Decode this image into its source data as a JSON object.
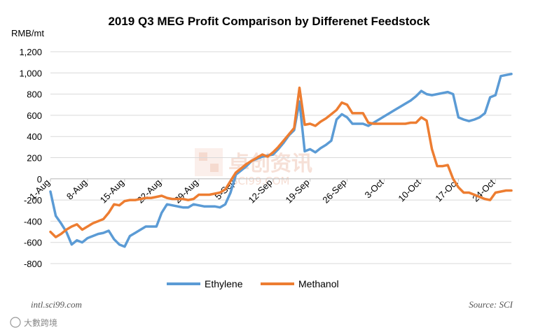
{
  "chart_data": {
    "type": "line",
    "title": "2019 Q3 MEG Profit Comparison by Differenet Feedstock",
    "ylabel": "RMB/mt",
    "ylim": [
      -800,
      1200
    ],
    "yticks": [
      -800,
      -600,
      -400,
      -200,
      0,
      200,
      400,
      600,
      800,
      1000,
      1200
    ],
    "ytick_labels": [
      "-800",
      "-600",
      "-400",
      "-200",
      "0",
      "200",
      "400",
      "600",
      "800",
      "1,000",
      "1,200"
    ],
    "xlim": [
      0,
      87
    ],
    "xticks": [
      {
        "day": 0,
        "label": "1-Aug"
      },
      {
        "day": 7,
        "label": "8-Aug"
      },
      {
        "day": 14,
        "label": "15-Aug"
      },
      {
        "day": 21,
        "label": "22-Aug"
      },
      {
        "day": 28,
        "label": "29-Aug"
      },
      {
        "day": 35,
        "label": "5-Sep"
      },
      {
        "day": 42,
        "label": "12-Sep"
      },
      {
        "day": 49,
        "label": "19-Sep"
      },
      {
        "day": 56,
        "label": "26-Sep"
      },
      {
        "day": 63,
        "label": "3-Oct"
      },
      {
        "day": 70,
        "label": "10-Oct"
      },
      {
        "day": 77,
        "label": "17-Oct"
      },
      {
        "day": 84,
        "label": "24-Oct"
      }
    ],
    "grid": "horizontal",
    "legend": "bottom",
    "series": [
      {
        "name": "Ethylene",
        "color": "#5b9bd5",
        "points": [
          [
            0,
            -120
          ],
          [
            1,
            -350
          ],
          [
            2,
            -420
          ],
          [
            3,
            -500
          ],
          [
            4,
            -620
          ],
          [
            5,
            -580
          ],
          [
            6,
            -600
          ],
          [
            7,
            -560
          ],
          [
            8,
            -540
          ],
          [
            9,
            -520
          ],
          [
            10,
            -510
          ],
          [
            11,
            -490
          ],
          [
            12,
            -570
          ],
          [
            13,
            -620
          ],
          [
            14,
            -640
          ],
          [
            15,
            -540
          ],
          [
            16,
            -510
          ],
          [
            17,
            -480
          ],
          [
            18,
            -450
          ],
          [
            19,
            -450
          ],
          [
            20,
            -450
          ],
          [
            21,
            -320
          ],
          [
            22,
            -240
          ],
          [
            23,
            -250
          ],
          [
            24,
            -260
          ],
          [
            25,
            -270
          ],
          [
            26,
            -270
          ],
          [
            27,
            -240
          ],
          [
            28,
            -250
          ],
          [
            29,
            -260
          ],
          [
            30,
            -260
          ],
          [
            31,
            -260
          ],
          [
            32,
            -270
          ],
          [
            33,
            -240
          ],
          [
            34,
            -130
          ],
          [
            35,
            40
          ],
          [
            36,
            80
          ],
          [
            37,
            120
          ],
          [
            38,
            170
          ],
          [
            39,
            190
          ],
          [
            40,
            210
          ],
          [
            41,
            220
          ],
          [
            42,
            230
          ],
          [
            43,
            280
          ],
          [
            44,
            340
          ],
          [
            45,
            410
          ],
          [
            46,
            460
          ],
          [
            47,
            730
          ],
          [
            48,
            260
          ],
          [
            49,
            280
          ],
          [
            50,
            250
          ],
          [
            51,
            290
          ],
          [
            52,
            320
          ],
          [
            53,
            360
          ],
          [
            54,
            560
          ],
          [
            55,
            610
          ],
          [
            56,
            580
          ],
          [
            57,
            520
          ],
          [
            58,
            520
          ],
          [
            59,
            520
          ],
          [
            60,
            500
          ],
          [
            61,
            530
          ],
          [
            62,
            560
          ],
          [
            63,
            590
          ],
          [
            64,
            620
          ],
          [
            65,
            650
          ],
          [
            66,
            680
          ],
          [
            67,
            710
          ],
          [
            68,
            740
          ],
          [
            69,
            780
          ],
          [
            70,
            830
          ],
          [
            71,
            800
          ],
          [
            72,
            790
          ],
          [
            73,
            800
          ],
          [
            74,
            810
          ],
          [
            75,
            820
          ],
          [
            76,
            800
          ],
          [
            77,
            580
          ],
          [
            78,
            560
          ],
          [
            79,
            545
          ],
          [
            80,
            560
          ],
          [
            81,
            580
          ],
          [
            82,
            620
          ],
          [
            83,
            770
          ],
          [
            84,
            790
          ],
          [
            85,
            970
          ],
          [
            86,
            980
          ],
          [
            87,
            990
          ]
        ]
      },
      {
        "name": "Methanol",
        "color": "#ed7d31",
        "points": [
          [
            0,
            -500
          ],
          [
            1,
            -550
          ],
          [
            2,
            -520
          ],
          [
            3,
            -480
          ],
          [
            4,
            -450
          ],
          [
            5,
            -430
          ],
          [
            6,
            -480
          ],
          [
            7,
            -450
          ],
          [
            8,
            -420
          ],
          [
            9,
            -400
          ],
          [
            10,
            -380
          ],
          [
            11,
            -320
          ],
          [
            12,
            -240
          ],
          [
            13,
            -250
          ],
          [
            14,
            -210
          ],
          [
            15,
            -200
          ],
          [
            16,
            -200
          ],
          [
            17,
            -190
          ],
          [
            18,
            -180
          ],
          [
            19,
            -180
          ],
          [
            20,
            -170
          ],
          [
            21,
            -160
          ],
          [
            22,
            -180
          ],
          [
            23,
            -190
          ],
          [
            24,
            -190
          ],
          [
            25,
            -190
          ],
          [
            26,
            -200
          ],
          [
            27,
            -190
          ],
          [
            28,
            -150
          ],
          [
            29,
            -150
          ],
          [
            30,
            -150
          ],
          [
            31,
            -140
          ],
          [
            32,
            -130
          ],
          [
            33,
            -100
          ],
          [
            34,
            -20
          ],
          [
            35,
            60
          ],
          [
            36,
            100
          ],
          [
            37,
            140
          ],
          [
            38,
            170
          ],
          [
            39,
            200
          ],
          [
            40,
            230
          ],
          [
            41,
            210
          ],
          [
            42,
            250
          ],
          [
            43,
            300
          ],
          [
            44,
            360
          ],
          [
            45,
            420
          ],
          [
            46,
            480
          ],
          [
            47,
            860
          ],
          [
            48,
            510
          ],
          [
            49,
            520
          ],
          [
            50,
            500
          ],
          [
            51,
            540
          ],
          [
            52,
            570
          ],
          [
            53,
            610
          ],
          [
            54,
            650
          ],
          [
            55,
            720
          ],
          [
            56,
            700
          ],
          [
            57,
            620
          ],
          [
            58,
            620
          ],
          [
            59,
            620
          ],
          [
            60,
            530
          ],
          [
            61,
            520
          ],
          [
            62,
            520
          ],
          [
            63,
            520
          ],
          [
            64,
            520
          ],
          [
            65,
            520
          ],
          [
            66,
            520
          ],
          [
            67,
            520
          ],
          [
            68,
            530
          ],
          [
            69,
            530
          ],
          [
            70,
            580
          ],
          [
            71,
            550
          ],
          [
            72,
            280
          ],
          [
            73,
            120
          ],
          [
            74,
            120
          ],
          [
            75,
            130
          ],
          [
            76,
            0
          ],
          [
            77,
            -80
          ],
          [
            78,
            -130
          ],
          [
            79,
            -130
          ],
          [
            80,
            -150
          ],
          [
            81,
            -170
          ],
          [
            82,
            -190
          ],
          [
            83,
            -200
          ],
          [
            84,
            -130
          ],
          [
            85,
            -120
          ],
          [
            86,
            -110
          ],
          [
            87,
            -110
          ]
        ]
      }
    ],
    "annotations": {
      "footer_left": "intl.sci99.com",
      "footer_right": "Source: SCI"
    },
    "watermark": {
      "text_cn": "卓创资讯",
      "text_en": "SCI99.COM",
      "corner": "大數跨境"
    }
  }
}
